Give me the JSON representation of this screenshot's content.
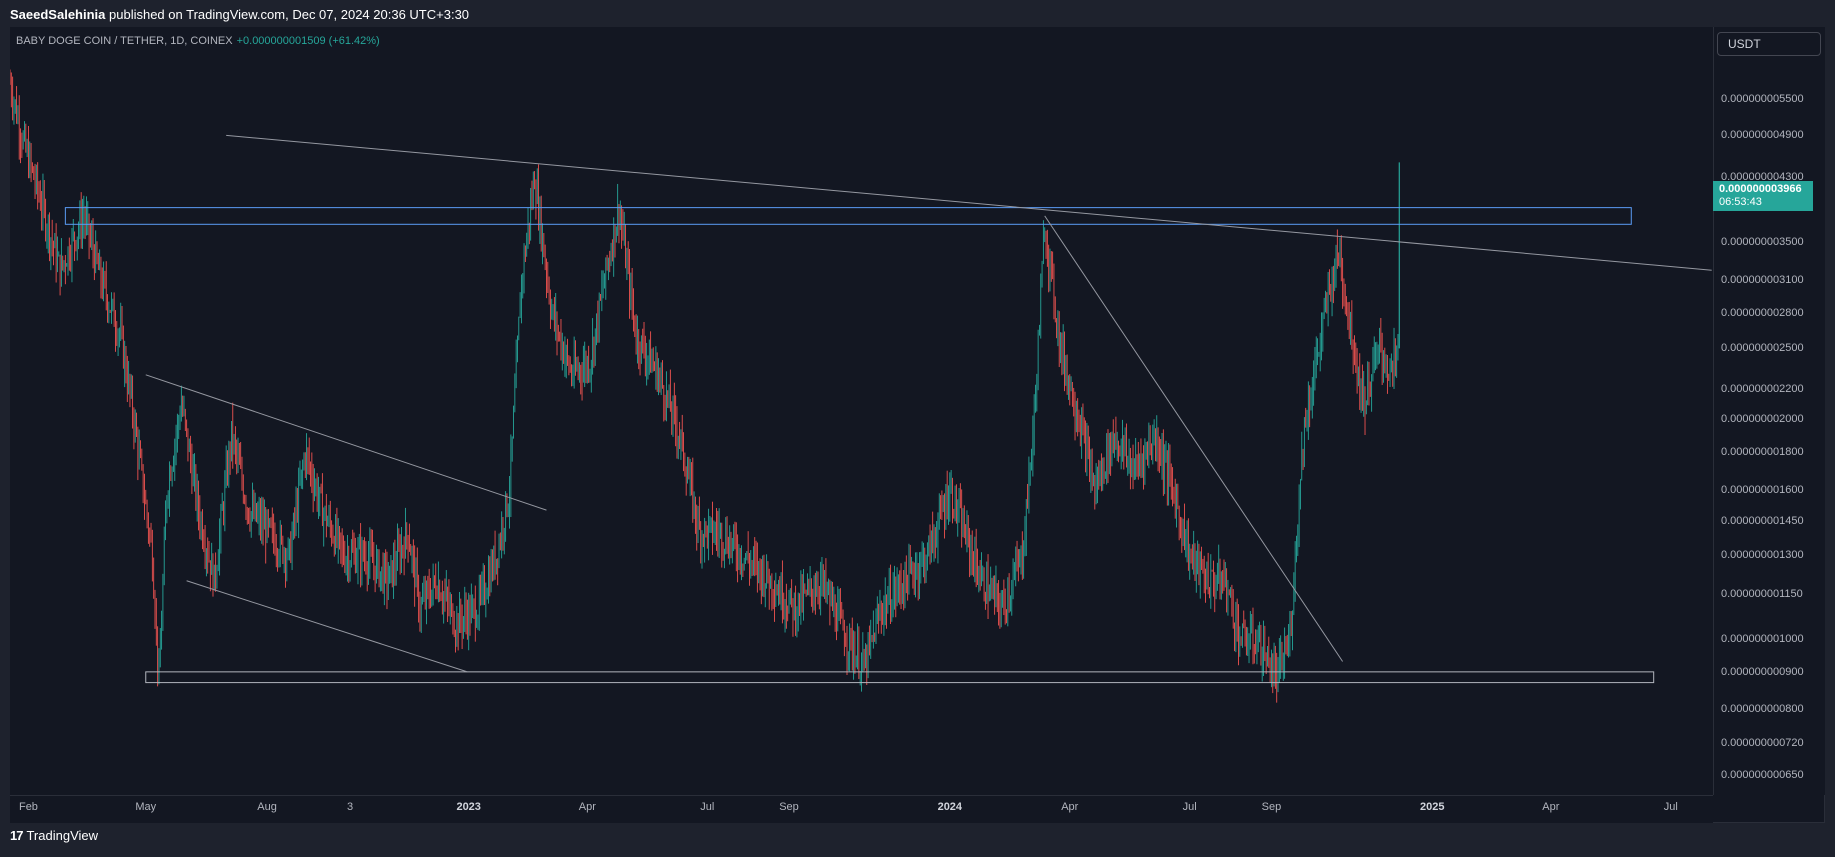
{
  "header": {
    "publisher": "SaeedSalehinia",
    "published_text": " published on TradingView.com, Dec 07, 2024 20:36 UTC+3:30"
  },
  "legend": {
    "symbol": "BABY DOGE COIN / TETHER, 1D, COINEX",
    "change": "+0.000000001509 (+61.42%)"
  },
  "currency_button": "USDT",
  "last_price": {
    "price": "0.000000003966",
    "countdown": "06:53:43"
  },
  "footer": {
    "brand": "TradingView",
    "logo_glyph": "17"
  },
  "colors": {
    "background": "#131722",
    "up": "#26a69a",
    "down": "#ef5350",
    "drawing": "#9598a1",
    "zone": "#5b9cf6"
  },
  "chart_data": {
    "type": "candlestick",
    "title": "",
    "y_scale": "log",
    "ylim": [
      6.1e-10,
      6.9e-09
    ],
    "x_range": [
      "2022-01-18",
      "2025-08-02"
    ],
    "price_ticks": [
      {
        "value": 5.5e-09,
        "label": "0.000000005500"
      },
      {
        "value": 4.9e-09,
        "label": "0.000000004900"
      },
      {
        "value": 4.3e-09,
        "label": "0.000000004300"
      },
      {
        "value": 3.5e-09,
        "label": "0.000000003500"
      },
      {
        "value": 3.1e-09,
        "label": "0.000000003100"
      },
      {
        "value": 2.8e-09,
        "label": "0.000000002800"
      },
      {
        "value": 2.5e-09,
        "label": "0.000000002500"
      },
      {
        "value": 2.2e-09,
        "label": "0.000000002200"
      },
      {
        "value": 2e-09,
        "label": "0.000000002000"
      },
      {
        "value": 1.8e-09,
        "label": "0.000000001800"
      },
      {
        "value": 1.6e-09,
        "label": "0.000000001600"
      },
      {
        "value": 1.45e-09,
        "label": "0.000000001450"
      },
      {
        "value": 1.3e-09,
        "label": "0.000000001300"
      },
      {
        "value": 1.15e-09,
        "label": "0.000000001150"
      },
      {
        "value": 1e-09,
        "label": "0.000000001000"
      },
      {
        "value": 9e-10,
        "label": "0.000000000900"
      },
      {
        "value": 8e-10,
        "label": "0.000000000800"
      },
      {
        "value": 7.2e-10,
        "label": "0.000000000720"
      },
      {
        "value": 6.5e-10,
        "label": "0.000000000650"
      }
    ],
    "time_ticks": [
      {
        "date": "2022-02-01",
        "label": "Feb",
        "bold": false
      },
      {
        "date": "2022-05-01",
        "label": "May",
        "bold": false
      },
      {
        "date": "2022-08-01",
        "label": "Aug",
        "bold": false
      },
      {
        "date": "2022-10-03",
        "label": "3",
        "bold": false
      },
      {
        "date": "2023-01-01",
        "label": "2023",
        "bold": true
      },
      {
        "date": "2023-04-01",
        "label": "Apr",
        "bold": false
      },
      {
        "date": "2023-07-01",
        "label": "Jul",
        "bold": false
      },
      {
        "date": "2023-09-01",
        "label": "Sep",
        "bold": false
      },
      {
        "date": "2024-01-01",
        "label": "2024",
        "bold": true
      },
      {
        "date": "2024-04-01",
        "label": "Apr",
        "bold": false
      },
      {
        "date": "2024-07-01",
        "label": "Jul",
        "bold": false
      },
      {
        "date": "2024-09-01",
        "label": "Sep",
        "bold": false
      },
      {
        "date": "2025-01-01",
        "label": "2025",
        "bold": true
      },
      {
        "date": "2025-04-01",
        "label": "Apr",
        "bold": false
      },
      {
        "date": "2025-07-01",
        "label": "Jul",
        "bold": false
      }
    ],
    "price_path": [
      [
        "2022-01-18",
        5.8e-09
      ],
      [
        "2022-01-28",
        4.8e-09
      ],
      [
        "2022-02-10",
        4e-09
      ],
      [
        "2022-02-25",
        3.2e-09
      ],
      [
        "2022-03-15",
        3.8e-09
      ],
      [
        "2022-03-28",
        3.1e-09
      ],
      [
        "2022-04-12",
        2.6e-09
      ],
      [
        "2022-04-22",
        2e-09
      ],
      [
        "2022-05-06",
        1.3e-09
      ],
      [
        "2022-05-11",
        8.7e-10
      ],
      [
        "2022-05-17",
        1.6e-09
      ],
      [
        "2022-05-28",
        2.1e-09
      ],
      [
        "2022-06-10",
        1.5e-09
      ],
      [
        "2022-06-22",
        1.2e-09
      ],
      [
        "2022-07-05",
        1.9e-09
      ],
      [
        "2022-07-18",
        1.5e-09
      ],
      [
        "2022-08-02",
        1.4e-09
      ],
      [
        "2022-08-18",
        1.3e-09
      ],
      [
        "2022-08-30",
        1.8e-09
      ],
      [
        "2022-09-12",
        1.5e-09
      ],
      [
        "2022-09-28",
        1.3e-09
      ],
      [
        "2022-10-15",
        1.3e-09
      ],
      [
        "2022-11-01",
        1.2e-09
      ],
      [
        "2022-11-16",
        1.4e-09
      ],
      [
        "2022-11-25",
        1.1e-09
      ],
      [
        "2022-12-08",
        1.2e-09
      ],
      [
        "2022-12-22",
        1.05e-09
      ],
      [
        "2023-01-08",
        1.1e-09
      ],
      [
        "2023-01-22",
        1.3e-09
      ],
      [
        "2023-02-01",
        1.6e-09
      ],
      [
        "2023-02-10",
        3.1e-09
      ],
      [
        "2023-02-20",
        4.3e-09
      ],
      [
        "2023-03-05",
        2.8e-09
      ],
      [
        "2023-03-20",
        2.3e-09
      ],
      [
        "2023-04-03",
        2.4e-09
      ],
      [
        "2023-04-14",
        3.1e-09
      ],
      [
        "2023-04-25",
        3.9e-09
      ],
      [
        "2023-05-08",
        2.6e-09
      ],
      [
        "2023-05-25",
        2.3e-09
      ],
      [
        "2023-06-10",
        1.9e-09
      ],
      [
        "2023-06-25",
        1.4e-09
      ],
      [
        "2023-07-10",
        1.4e-09
      ],
      [
        "2023-07-28",
        1.3e-09
      ],
      [
        "2023-08-18",
        1.2e-09
      ],
      [
        "2023-09-05",
        1.1e-09
      ],
      [
        "2023-09-25",
        1.2e-09
      ],
      [
        "2023-10-15",
        1e-09
      ],
      [
        "2023-10-28",
        9.1e-10
      ],
      [
        "2023-11-10",
        1.1e-09
      ],
      [
        "2023-11-28",
        1.2e-09
      ],
      [
        "2023-12-15",
        1.3e-09
      ],
      [
        "2024-01-01",
        1.6e-09
      ],
      [
        "2024-01-12",
        1.4e-09
      ],
      [
        "2024-01-25",
        1.2e-09
      ],
      [
        "2024-02-10",
        1.1e-09
      ],
      [
        "2024-02-25",
        1.3e-09
      ],
      [
        "2024-03-05",
        2e-09
      ],
      [
        "2024-03-13",
        3.7e-09
      ],
      [
        "2024-03-25",
        2.5e-09
      ],
      [
        "2024-04-08",
        2e-09
      ],
      [
        "2024-04-20",
        1.6e-09
      ],
      [
        "2024-05-05",
        1.9e-09
      ],
      [
        "2024-05-20",
        1.7e-09
      ],
      [
        "2024-06-05",
        1.9e-09
      ],
      [
        "2024-06-18",
        1.6e-09
      ],
      [
        "2024-07-01",
        1.3e-09
      ],
      [
        "2024-07-15",
        1.2e-09
      ],
      [
        "2024-07-28",
        1.2e-09
      ],
      [
        "2024-08-08",
        1e-09
      ],
      [
        "2024-08-22",
        9.9e-10
      ],
      [
        "2024-09-05",
        8.8e-10
      ],
      [
        "2024-09-15",
        1e-09
      ],
      [
        "2024-09-25",
        1.9e-09
      ],
      [
        "2024-10-05",
        2.4e-09
      ],
      [
        "2024-10-15",
        3e-09
      ],
      [
        "2024-10-22",
        3.4e-09
      ],
      [
        "2024-11-01",
        2.6e-09
      ],
      [
        "2024-11-10",
        2.1e-09
      ],
      [
        "2024-11-22",
        2.5e-09
      ],
      [
        "2024-12-01",
        2.3e-09
      ],
      [
        "2024-12-06",
        2.5e-09
      ],
      [
        "2024-12-07",
        3.966e-09
      ]
    ],
    "drawings": {
      "resistance_zone": {
        "from": "2022-03-01",
        "to": "2025-06-01",
        "low": 3.7e-09,
        "high": 3.9e-09
      },
      "support_zone": {
        "from": "2022-05-01",
        "to": "2025-06-18",
        "low": 8.7e-10,
        "high": 9e-10
      },
      "trendlines": [
        {
          "x1": "2022-07-01",
          "y1": 4.9e-09,
          "x2": "2025-08-01",
          "y2": 3.2e-09
        },
        {
          "x1": "2022-05-01",
          "y1": 2.3e-09,
          "x2": "2023-03-01",
          "y2": 1.5e-09
        },
        {
          "x1": "2022-06-01",
          "y1": 1.2e-09,
          "x2": "2022-12-31",
          "y2": 9e-10
        },
        {
          "x1": "2024-03-13",
          "y1": 3.8e-09,
          "x2": "2024-10-25",
          "y2": 9.3e-10
        }
      ]
    }
  }
}
